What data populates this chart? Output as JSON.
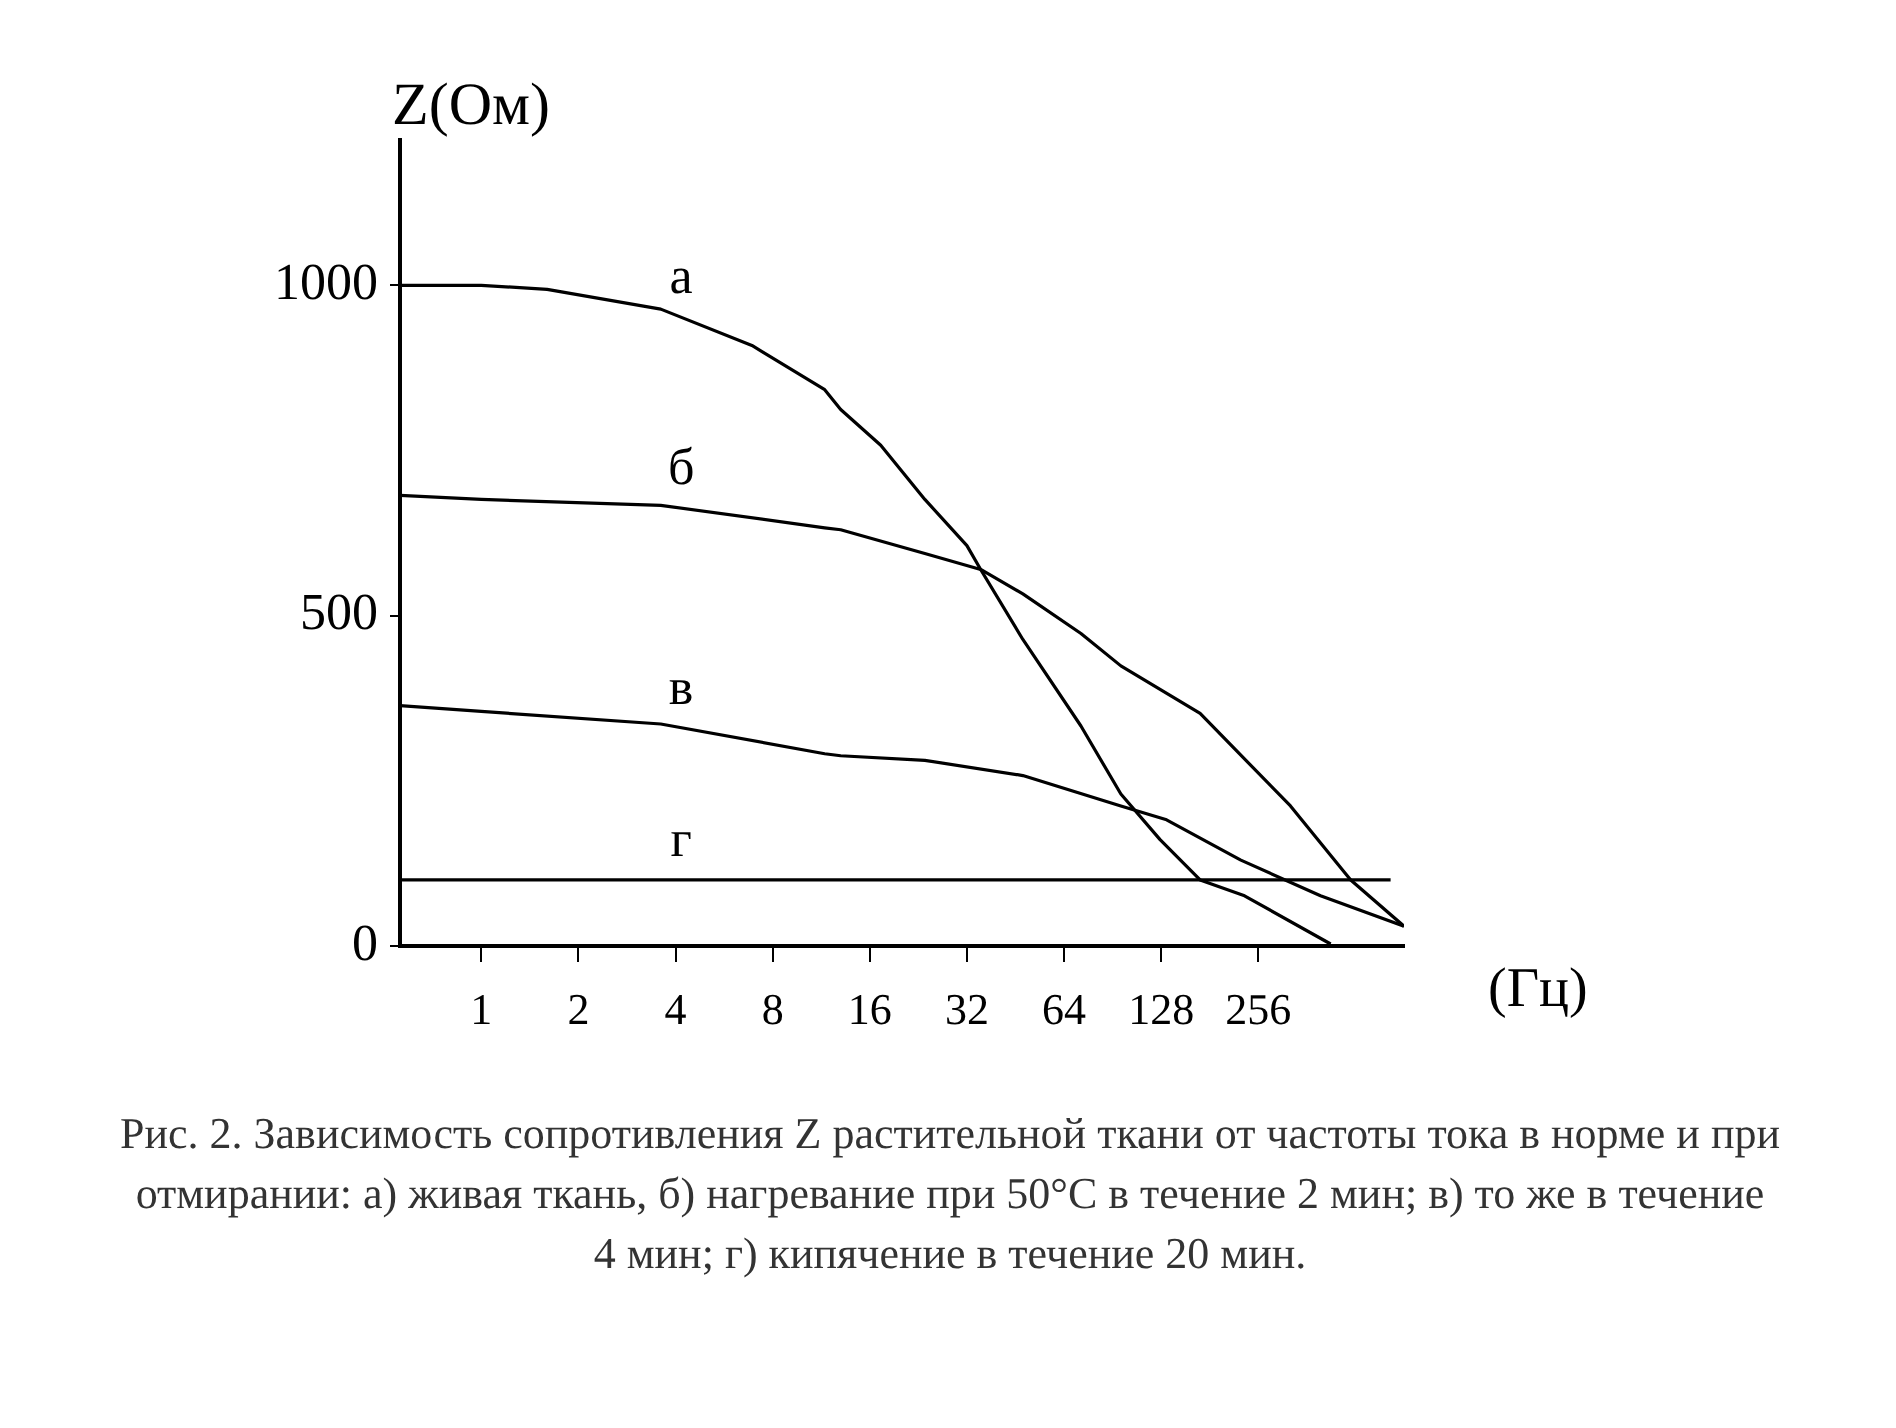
{
  "chart_data": {
    "type": "line",
    "ylabel": "Z(Ом)",
    "xlabel": "(Гц)",
    "log": "x",
    "grid": false,
    "line_style": "solid",
    "xlim": [
      0.56,
      724
    ],
    "xticks": [
      1,
      2,
      4,
      8,
      16,
      32,
      64,
      128,
      256
    ],
    "ylim": [
      0,
      1220
    ],
    "yticks": [
      0,
      500,
      1000
    ],
    "series": [
      {
        "name": "а",
        "color": "#000000",
        "x": [
          0.56,
          1,
          1.6,
          3.6,
          6.9,
          11.6,
          13,
          17.3,
          23.7,
          32,
          35.3,
          47.7,
          72.2,
          96,
          127,
          169,
          232,
          429
        ],
        "values": [
          1000,
          1000,
          994,
          964,
          909,
          842,
          812,
          758,
          676,
          606,
          570,
          464,
          333,
          230,
          161,
          100,
          76,
          3
        ]
      },
      {
        "name": "б",
        "color": "#000000",
        "x": [
          0.56,
          1,
          3.6,
          11.6,
          13,
          23.7,
          35.3,
          47.7,
          72.2,
          96,
          169,
          322,
          495,
          724
        ],
        "values": [
          682,
          676,
          667,
          633,
          630,
          594,
          570,
          533,
          473,
          424,
          352,
          212,
          100,
          30
        ]
      },
      {
        "name": "в",
        "color": "#000000",
        "x": [
          0.56,
          1,
          3.6,
          11.6,
          13,
          23.7,
          47.7,
          96,
          133,
          226,
          399,
          724
        ],
        "values": [
          364,
          355,
          336,
          291,
          288,
          281,
          258,
          212,
          191,
          130,
          76,
          30
        ]
      },
      {
        "name": "г",
        "color": "#000000",
        "x": [
          0.56,
          658
        ],
        "values": [
          100,
          100
        ]
      }
    ],
    "annotations": [
      "Рис. 2. Зависимость сопротивления Z растительной ткани от частоты тока в норме и при отмирании: а) живая ткань, б) нагревание при 50°С в течение 2 мин; в) то же в течение 4 мин; г) кипячение в течение 20 мин."
    ]
  }
}
